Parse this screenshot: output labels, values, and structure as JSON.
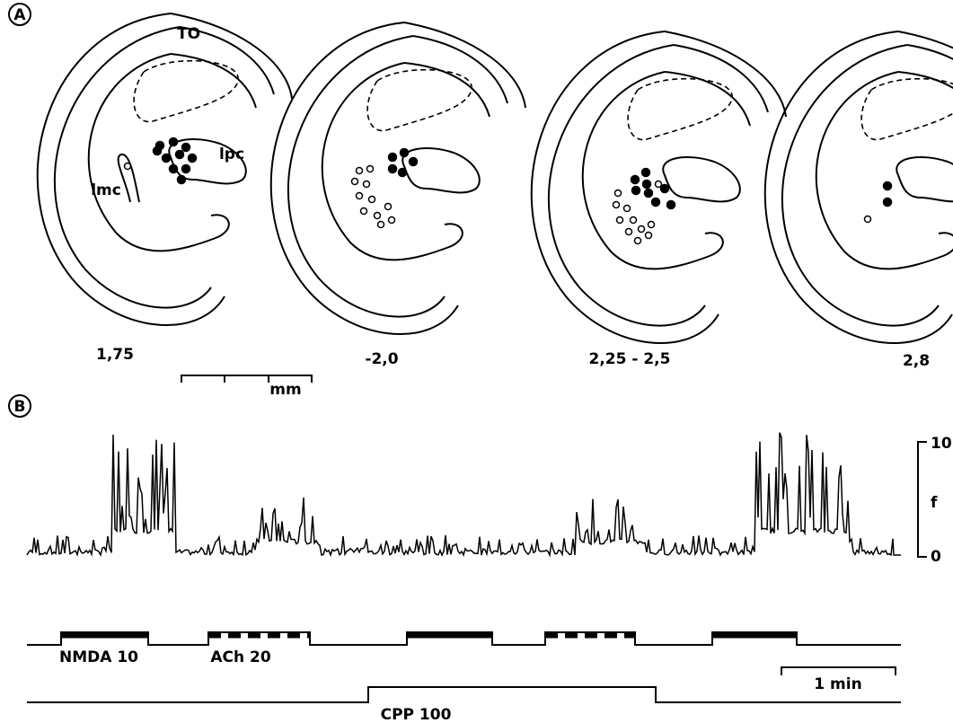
{
  "panel_a": {
    "label": "A",
    "structure_labels": [
      "TO",
      "lpc",
      "lmc"
    ],
    "section_levels": [
      "1,75",
      "-2,0",
      "2,25 - 2,5",
      "2,8"
    ],
    "scale_unit": "mm"
  },
  "panel_b": {
    "label": "B",
    "scale_top": "10",
    "scale_unit": "f",
    "scale_bottom": "0",
    "applications": [
      "NMDA  10",
      "ACh  20"
    ],
    "time_scale": "1 min",
    "background_drug": "CPP  100"
  }
}
